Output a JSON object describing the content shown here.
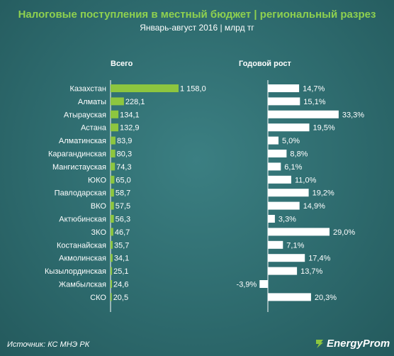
{
  "header": {
    "title": "Налоговые поступления в местный бюджет | региональный разрез",
    "subtitle": "Январь-август 2016 | млрд тг"
  },
  "footer": {
    "source": "Источник: КС МНЭ РК",
    "brand": "EnergyProm"
  },
  "chart_data": {
    "type": "bar",
    "categories": [
      "Казахстан",
      "Алматы",
      "Атырауская",
      "Астана",
      "Алматинская",
      "Карагандинская",
      "Мангистауская",
      "ЮКО",
      "Павлодарская",
      "ВКО",
      "Актюбинская",
      "ЗКО",
      "Костанайская",
      "Акмолинская",
      "Кызылординская",
      "Жамбылская",
      "СКО"
    ],
    "panels": [
      {
        "title": "Всего",
        "values": [
          1158.0,
          228.1,
          134.1,
          132.9,
          83.9,
          80.3,
          74.3,
          65.0,
          58.7,
          57.5,
          56.3,
          46.7,
          35.7,
          34.1,
          25.1,
          24.6,
          20.5
        ],
        "labels": [
          "1 158,0",
          "228,1",
          "134,1",
          "132,9",
          "83,9",
          "80,3",
          "74,3",
          "65,0",
          "58,7",
          "57,5",
          "56,3",
          "46,7",
          "35,7",
          "34,1",
          "25,1",
          "24,6",
          "20,5"
        ],
        "color": "#8dc63f",
        "xlim": [
          0,
          1158
        ]
      },
      {
        "title": "Годовой рост",
        "values": [
          14.7,
          15.1,
          33.3,
          19.5,
          5.0,
          8.8,
          6.1,
          11.0,
          19.2,
          14.9,
          3.3,
          29.0,
          7.1,
          17.4,
          13.7,
          -3.9,
          20.3
        ],
        "labels": [
          "14,7%",
          "15,1%",
          "33,3%",
          "19,5%",
          "5,0%",
          "8,8%",
          "6,1%",
          "11,0%",
          "19,2%",
          "14,9%",
          "3,3%",
          "29,0%",
          "7,1%",
          "17,4%",
          "13,7%",
          "-3,9%",
          "20,3%"
        ],
        "unit": "%",
        "color": "#ffffff",
        "xlim": [
          -3.9,
          33.3
        ]
      }
    ]
  }
}
